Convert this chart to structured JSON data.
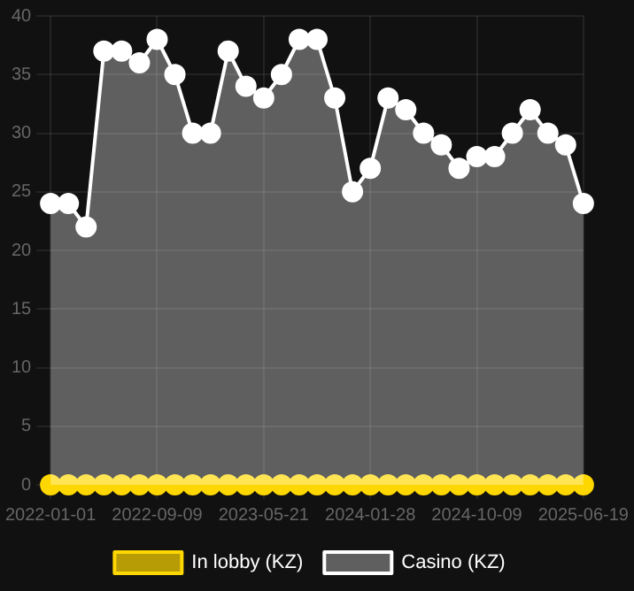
{
  "chart_data": {
    "type": "area",
    "categories": [
      "2022-01-01",
      null,
      null,
      null,
      null,
      null,
      "2022-09-09",
      null,
      null,
      null,
      null,
      null,
      "2023-05-21",
      null,
      null,
      null,
      null,
      null,
      "2024-01-28",
      null,
      null,
      null,
      null,
      null,
      "2024-10-09",
      null,
      null,
      null,
      null,
      null,
      "2025-06-19"
    ],
    "series": [
      {
        "name": "In lobby (KZ)",
        "type": "line",
        "color": "#ffd700",
        "values": [
          0,
          0,
          0,
          0,
          0,
          0,
          0,
          0,
          0,
          0,
          0,
          0,
          0,
          0,
          0,
          0,
          0,
          0,
          0,
          0,
          0,
          0,
          0,
          0,
          0,
          0,
          0,
          0,
          0,
          0,
          0
        ]
      },
      {
        "name": "Casino (KZ)",
        "color": "#ffffff",
        "values": [
          24,
          24,
          22,
          37,
          37,
          36,
          38,
          35,
          30,
          30,
          37,
          34,
          33,
          35,
          38,
          38,
          33,
          25,
          27,
          33,
          32,
          30,
          29,
          27,
          28,
          28,
          30,
          32,
          30,
          29,
          24
        ]
      }
    ],
    "ylim": [
      0,
      40
    ],
    "yticks": [
      0,
      5,
      10,
      15,
      20,
      25,
      30,
      35,
      40
    ],
    "grid": true,
    "legend": "bottom",
    "marker": "circle"
  }
}
